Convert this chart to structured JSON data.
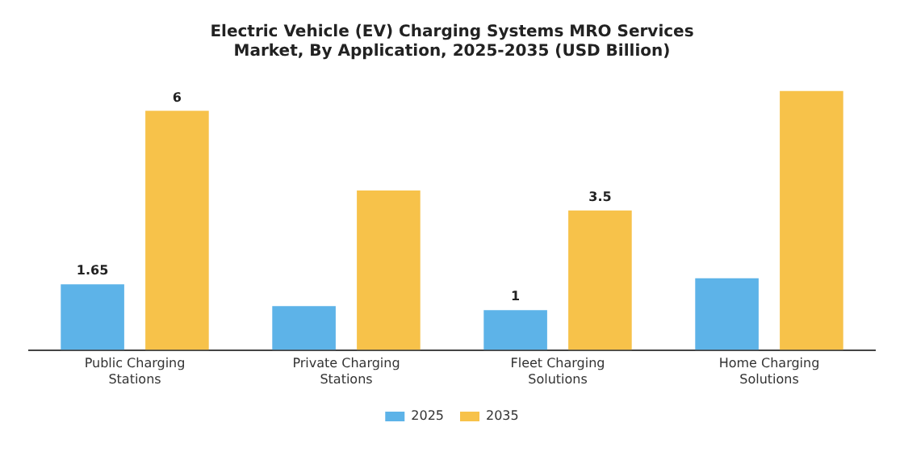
{
  "chart_data": {
    "type": "bar",
    "title": "Electric Vehicle (EV) Charging Systems MRO Services Market, By Application, 2025-2035 (USD Billion)",
    "categories": [
      "Public Charging Stations",
      "Private Charging Stations",
      "Fleet Charging Solutions",
      "Home Charging Solutions"
    ],
    "series": [
      {
        "name": "2025",
        "color": "#5db3e8",
        "values": [
          1.65,
          1.1,
          1,
          1.8
        ],
        "value_labels": [
          "1.65",
          null,
          "1",
          null
        ]
      },
      {
        "name": "2035",
        "color": "#f7c24a",
        "values": [
          6,
          4,
          3.5,
          6.5
        ],
        "value_labels": [
          "6",
          null,
          "3.5",
          null
        ]
      }
    ],
    "tick_labels": "x",
    "grid": false,
    "legend": "bottom"
  }
}
